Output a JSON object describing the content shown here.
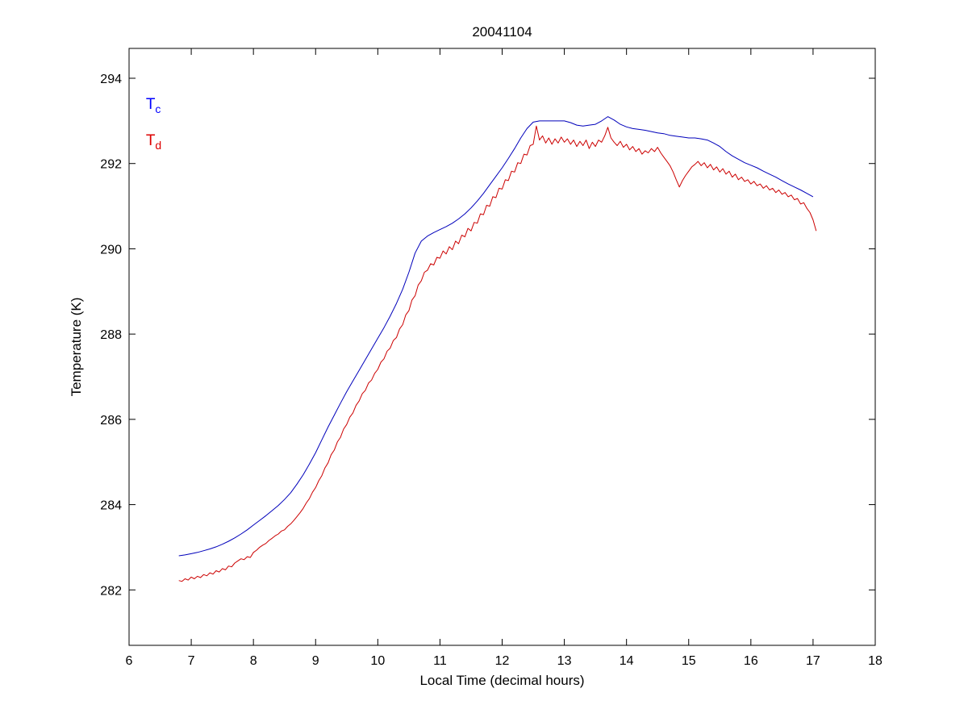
{
  "figure": {
    "background": "#ffffff"
  },
  "chart_data": {
    "type": "line",
    "title": "20041104",
    "xlabel": "Local Time (decimal hours)",
    "ylabel": "Temperature (K)",
    "xlim": [
      6,
      18
    ],
    "ylim": [
      280.7,
      294.7
    ],
    "xticks": [
      6,
      7,
      8,
      9,
      10,
      11,
      12,
      13,
      14,
      15,
      16,
      17,
      18
    ],
    "yticks": [
      282,
      284,
      286,
      288,
      290,
      292,
      294
    ],
    "grid": false,
    "legend_position": "inside-top-left",
    "axis_color": "#000000",
    "series": [
      {
        "name": "Tc",
        "legend_main": "T",
        "legend_sub": "c",
        "color": "#0000BB",
        "legend_color": "#0000FF",
        "legend_pos": [
          6.27,
          293.28
        ],
        "x0": 6.8,
        "dx": 0.1,
        "values": [
          282.8,
          282.82,
          282.85,
          282.88,
          282.92,
          282.96,
          283.01,
          283.07,
          283.14,
          283.22,
          283.31,
          283.41,
          283.52,
          283.63,
          283.74,
          283.86,
          283.98,
          284.12,
          284.28,
          284.48,
          284.7,
          284.95,
          285.22,
          285.52,
          285.82,
          286.1,
          286.38,
          286.65,
          286.9,
          287.15,
          287.4,
          287.65,
          287.9,
          288.15,
          288.42,
          288.72,
          289.05,
          289.45,
          289.9,
          290.18,
          290.3,
          290.38,
          290.45,
          290.52,
          290.6,
          290.7,
          290.82,
          290.96,
          291.12,
          291.3,
          291.5,
          291.7,
          291.9,
          292.12,
          292.35,
          292.6,
          292.82,
          292.97,
          293.0,
          293.0,
          293.0,
          293.0,
          293.0,
          292.96,
          292.9,
          292.88,
          292.9,
          292.92,
          293.0,
          293.1,
          293.02,
          292.92,
          292.86,
          292.82,
          292.8,
          292.78,
          292.75,
          292.72,
          292.7,
          292.66,
          292.64,
          292.62,
          292.6,
          292.6,
          292.58,
          292.55,
          292.48,
          292.4,
          292.28,
          292.18,
          292.1,
          292.02,
          291.96,
          291.9,
          291.82,
          291.75,
          291.68,
          291.6,
          291.52,
          291.45,
          291.38,
          291.3,
          291.22
        ]
      },
      {
        "name": "Td",
        "legend_main": "T",
        "legend_sub": "d",
        "color": "#CC0000",
        "legend_color": "#DD0000",
        "legend_pos": [
          6.27,
          292.43
        ],
        "x0": 6.8,
        "dx": 0.05,
        "values": [
          282.22,
          282.2,
          282.26,
          282.23,
          282.3,
          282.26,
          282.32,
          282.29,
          282.36,
          282.33,
          282.4,
          282.37,
          282.45,
          282.42,
          282.5,
          282.47,
          282.56,
          282.54,
          282.63,
          282.68,
          282.73,
          282.71,
          282.78,
          282.76,
          282.88,
          282.93,
          283.0,
          283.05,
          283.09,
          283.16,
          283.21,
          283.27,
          283.31,
          283.38,
          283.41,
          283.49,
          283.55,
          283.63,
          283.72,
          283.81,
          283.91,
          284.04,
          284.14,
          284.29,
          284.4,
          284.56,
          284.68,
          284.86,
          284.98,
          285.17,
          285.28,
          285.47,
          285.58,
          285.77,
          285.88,
          286.05,
          286.15,
          286.33,
          286.43,
          286.6,
          286.68,
          286.85,
          286.92,
          287.08,
          287.17,
          287.34,
          287.42,
          287.6,
          287.67,
          287.85,
          287.92,
          288.12,
          288.22,
          288.45,
          288.55,
          288.8,
          288.9,
          289.15,
          289.25,
          289.45,
          289.5,
          289.65,
          289.62,
          289.8,
          289.78,
          289.95,
          289.88,
          290.05,
          289.98,
          290.18,
          290.12,
          290.32,
          290.28,
          290.48,
          290.42,
          290.62,
          290.6,
          290.82,
          290.8,
          291.02,
          291.0,
          291.22,
          291.2,
          291.42,
          291.4,
          291.62,
          291.6,
          291.82,
          291.8,
          292.02,
          292.0,
          292.22,
          292.2,
          292.42,
          292.45,
          292.88,
          292.55,
          292.65,
          292.48,
          292.6,
          292.45,
          292.58,
          292.48,
          292.62,
          292.5,
          292.58,
          292.45,
          292.55,
          292.4,
          292.52,
          292.42,
          292.55,
          292.35,
          292.5,
          292.4,
          292.55,
          292.5,
          292.65,
          292.85,
          292.6,
          292.5,
          292.42,
          292.52,
          292.38,
          292.45,
          292.32,
          292.4,
          292.28,
          292.35,
          292.22,
          292.3,
          292.25,
          292.35,
          292.28,
          292.38,
          292.25,
          292.15,
          292.05,
          291.95,
          291.8,
          291.62,
          291.45,
          291.6,
          291.72,
          291.82,
          291.92,
          291.98,
          292.05,
          291.95,
          292.02,
          291.9,
          291.98,
          291.85,
          291.92,
          291.8,
          291.88,
          291.75,
          291.82,
          291.68,
          291.75,
          291.62,
          291.68,
          291.58,
          291.62,
          291.52,
          291.58,
          291.48,
          291.52,
          291.42,
          291.48,
          291.38,
          291.42,
          291.32,
          291.38,
          291.28,
          291.32,
          291.22,
          291.26,
          291.15,
          291.18,
          291.05,
          291.08,
          290.95,
          290.85,
          290.68,
          290.42
        ]
      }
    ]
  }
}
